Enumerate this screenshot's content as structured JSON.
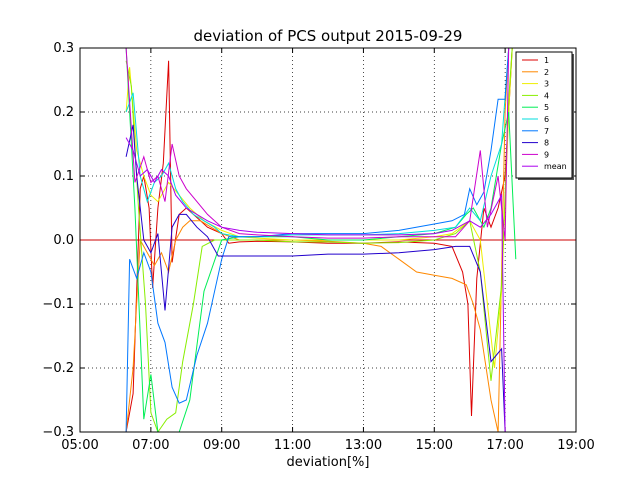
{
  "chart_data": {
    "type": "line",
    "title": "deviation of PCS output 2015-09-29",
    "xlabel": "deviation[%]",
    "ylabel": "",
    "x_ticks": [
      "05:00",
      "07:00",
      "09:00",
      "11:00",
      "13:00",
      "15:00",
      "17:00",
      "19:00"
    ],
    "y_ticks": [
      "0.3",
      "0.2",
      "0.1",
      "0.0",
      "−0.1",
      "−0.2",
      "−0.3"
    ],
    "xlim": [
      5,
      19
    ],
    "ylim": [
      -0.3,
      0.3
    ],
    "grid": true,
    "legend_position": "top-right",
    "reference_line": {
      "y": 0,
      "color": "#cc0000"
    },
    "series": [
      {
        "name": "1",
        "color": "#dd0000",
        "points": [
          [
            6.3,
            -0.3
          ],
          [
            6.5,
            -0.24
          ],
          [
            6.7,
            0.08
          ],
          [
            6.8,
            0.1
          ],
          [
            6.95,
            0.05
          ],
          [
            7.05,
            -0.075
          ],
          [
            7.2,
            0.05
          ],
          [
            7.35,
            0.12
          ],
          [
            7.5,
            0.28
          ],
          [
            7.6,
            -0.035
          ],
          [
            7.8,
            0.04
          ],
          [
            8.0,
            0.05
          ],
          [
            8.2,
            0.04
          ],
          [
            8.4,
            0.03
          ],
          [
            8.6,
            0.02
          ],
          [
            8.8,
            0.015
          ],
          [
            9.0,
            0.01
          ],
          [
            9.2,
            -0.005
          ],
          [
            9.5,
            -0.003
          ],
          [
            10,
            -0.002
          ],
          [
            11,
            -0.003
          ],
          [
            12,
            -0.005
          ],
          [
            13,
            -0.005
          ],
          [
            14,
            -0.003
          ],
          [
            15,
            -0.005
          ],
          [
            15.5,
            -0.01
          ],
          [
            15.8,
            -0.05
          ],
          [
            15.95,
            -0.1
          ],
          [
            16.05,
            -0.275
          ],
          [
            16.2,
            -0.06
          ],
          [
            16.4,
            0.05
          ],
          [
            16.6,
            0.02
          ],
          [
            16.8,
            0.05
          ],
          [
            17.0,
            0.1
          ],
          [
            17.1,
            0.2
          ],
          [
            17.2,
            0.3
          ]
        ]
      },
      {
        "name": "2",
        "color": "#ff8800",
        "points": [
          [
            6.3,
            -0.3
          ],
          [
            6.5,
            -0.2
          ],
          [
            6.7,
            0.0
          ],
          [
            6.9,
            -0.02
          ],
          [
            7.1,
            -0.04
          ],
          [
            7.3,
            -0.02
          ],
          [
            7.5,
            -0.05
          ],
          [
            7.7,
            0.0
          ],
          [
            7.9,
            0.02
          ],
          [
            8.1,
            0.03
          ],
          [
            8.4,
            0.03
          ],
          [
            8.7,
            0.02
          ],
          [
            9.0,
            0.01
          ],
          [
            9.5,
            0.0
          ],
          [
            10,
            0.0
          ],
          [
            11,
            0.0
          ],
          [
            12,
            -0.002
          ],
          [
            13,
            -0.005
          ],
          [
            13.5,
            -0.01
          ],
          [
            14,
            -0.03
          ],
          [
            14.5,
            -0.05
          ],
          [
            15,
            -0.055
          ],
          [
            15.5,
            -0.06
          ],
          [
            15.9,
            -0.07
          ],
          [
            16.1,
            -0.1
          ],
          [
            16.3,
            -0.14
          ],
          [
            16.6,
            -0.25
          ],
          [
            16.8,
            -0.3
          ],
          [
            17.0,
            0.2
          ],
          [
            17.1,
            0.3
          ]
        ]
      },
      {
        "name": "3",
        "color": "#eeee00",
        "points": [
          [
            6.3,
            0.2
          ],
          [
            6.4,
            0.27
          ],
          [
            6.6,
            0.14
          ],
          [
            6.8,
            0.1
          ],
          [
            7.0,
            0.07
          ],
          [
            7.2,
            0.06
          ],
          [
            7.5,
            0.09
          ],
          [
            7.8,
            0.07
          ],
          [
            8.1,
            0.05
          ],
          [
            8.5,
            0.03
          ],
          [
            9.0,
            0.015
          ],
          [
            9.5,
            0.005
          ],
          [
            10,
            0.003
          ],
          [
            11,
            0.0
          ],
          [
            12,
            0.0
          ],
          [
            13,
            0.0
          ],
          [
            14,
            0.0
          ],
          [
            15,
            0.005
          ],
          [
            15.5,
            0.01
          ],
          [
            16.0,
            0.03
          ],
          [
            16.3,
            0.0
          ],
          [
            16.5,
            -0.1
          ],
          [
            16.7,
            -0.2
          ],
          [
            16.9,
            -0.08
          ],
          [
            17.1,
            0.2
          ],
          [
            17.2,
            0.3
          ]
        ]
      },
      {
        "name": "4",
        "color": "#88ee00",
        "points": [
          [
            6.3,
            0.28
          ],
          [
            6.45,
            0.24
          ],
          [
            6.65,
            0.05
          ],
          [
            6.85,
            -0.1
          ],
          [
            7.0,
            -0.27
          ],
          [
            7.2,
            -0.3
          ],
          [
            7.45,
            -0.28
          ],
          [
            7.7,
            -0.27
          ],
          [
            7.9,
            -0.19
          ],
          [
            8.2,
            -0.1
          ],
          [
            8.45,
            -0.01
          ],
          [
            8.8,
            0.0
          ],
          [
            9.2,
            0.0
          ],
          [
            10,
            0.0
          ],
          [
            11,
            -0.003
          ],
          [
            12,
            -0.003
          ],
          [
            13,
            -0.005
          ],
          [
            14,
            -0.004
          ],
          [
            15,
            0.0
          ],
          [
            15.6,
            0.01
          ],
          [
            16.0,
            0.03
          ],
          [
            16.3,
            -0.05
          ],
          [
            16.6,
            -0.22
          ],
          [
            16.9,
            -0.07
          ],
          [
            17.1,
            0.22
          ],
          [
            17.2,
            0.3
          ]
        ]
      },
      {
        "name": "5",
        "color": "#00ee55",
        "points": [
          [
            6.3,
            0.3
          ],
          [
            6.55,
            0.05
          ],
          [
            6.8,
            -0.28
          ],
          [
            7.0,
            -0.21
          ],
          [
            7.2,
            -0.3
          ],
          [
            7.4,
            -0.3
          ],
          [
            7.6,
            -0.3
          ],
          [
            7.8,
            -0.3
          ],
          [
            8.1,
            -0.25
          ],
          [
            8.5,
            -0.08
          ],
          [
            9.0,
            0.0
          ],
          [
            9.5,
            0.005
          ],
          [
            10,
            0.005
          ],
          [
            11,
            0.005
          ],
          [
            12,
            0.0
          ],
          [
            13,
            0.0
          ],
          [
            14,
            0.005
          ],
          [
            15,
            0.01
          ],
          [
            15.6,
            0.02
          ],
          [
            15.9,
            0.04
          ],
          [
            16.1,
            0.05
          ],
          [
            16.4,
            0.02
          ],
          [
            16.6,
            0.05
          ],
          [
            16.9,
            0.15
          ],
          [
            17.1,
            0.2
          ],
          [
            17.3,
            -0.03
          ]
        ]
      },
      {
        "name": "6",
        "color": "#00dddd",
        "points": [
          [
            6.3,
            0.2
          ],
          [
            6.5,
            0.23
          ],
          [
            6.7,
            0.1
          ],
          [
            6.9,
            0.06
          ],
          [
            7.1,
            0.09
          ],
          [
            7.3,
            0.1
          ],
          [
            7.5,
            0.12
          ],
          [
            7.7,
            0.08
          ],
          [
            7.9,
            0.06
          ],
          [
            8.2,
            0.04
          ],
          [
            8.5,
            0.03
          ],
          [
            8.8,
            0.02
          ],
          [
            9.0,
            0.01
          ],
          [
            9.5,
            0.005
          ],
          [
            10,
            0.005
          ],
          [
            11,
            0.008
          ],
          [
            12,
            0.008
          ],
          [
            13,
            0.008
          ],
          [
            14,
            0.01
          ],
          [
            15,
            0.015
          ],
          [
            15.6,
            0.02
          ],
          [
            16.0,
            0.05
          ],
          [
            16.3,
            0.03
          ],
          [
            16.6,
            0.1
          ],
          [
            16.9,
            0.15
          ],
          [
            17.1,
            0.3
          ]
        ]
      },
      {
        "name": "7",
        "color": "#0077ff",
        "points": [
          [
            6.3,
            -0.3
          ],
          [
            6.4,
            -0.03
          ],
          [
            6.6,
            -0.06
          ],
          [
            6.8,
            -0.02
          ],
          [
            7.0,
            -0.05
          ],
          [
            7.2,
            -0.13
          ],
          [
            7.4,
            -0.16
          ],
          [
            7.6,
            -0.23
          ],
          [
            7.8,
            -0.255
          ],
          [
            8.0,
            -0.25
          ],
          [
            8.3,
            -0.18
          ],
          [
            8.6,
            -0.13
          ],
          [
            8.8,
            -0.08
          ],
          [
            9.0,
            -0.03
          ],
          [
            9.2,
            0.005
          ],
          [
            10,
            0.005
          ],
          [
            11,
            0.01
          ],
          [
            12,
            0.01
          ],
          [
            13,
            0.01
          ],
          [
            14,
            0.015
          ],
          [
            15,
            0.025
          ],
          [
            15.5,
            0.03
          ],
          [
            15.85,
            0.04
          ],
          [
            16.0,
            0.08
          ],
          [
            16.2,
            0.055
          ],
          [
            16.4,
            0.075
          ],
          [
            16.6,
            0.14
          ],
          [
            16.8,
            0.22
          ],
          [
            17.0,
            0.22
          ],
          [
            17.1,
            0.3
          ]
        ]
      },
      {
        "name": "8",
        "color": "#2200cc",
        "points": [
          [
            6.3,
            0.13
          ],
          [
            6.5,
            0.18
          ],
          [
            6.6,
            0.1
          ],
          [
            6.8,
            -0.0
          ],
          [
            7.0,
            -0.02
          ],
          [
            7.2,
            0.01
          ],
          [
            7.4,
            -0.11
          ],
          [
            7.6,
            0.02
          ],
          [
            7.8,
            0.04
          ],
          [
            8.0,
            0.04
          ],
          [
            8.3,
            0.02
          ],
          [
            8.6,
            0.005
          ],
          [
            8.9,
            -0.025
          ],
          [
            9.2,
            -0.025
          ],
          [
            10,
            -0.025
          ],
          [
            11,
            -0.025
          ],
          [
            12,
            -0.022
          ],
          [
            13,
            -0.022
          ],
          [
            14,
            -0.02
          ],
          [
            15,
            -0.015
          ],
          [
            15.6,
            -0.01
          ],
          [
            16.0,
            -0.01
          ],
          [
            16.3,
            -0.05
          ],
          [
            16.6,
            -0.19
          ],
          [
            16.9,
            -0.17
          ],
          [
            17.0,
            -0.3
          ]
        ]
      },
      {
        "name": "9",
        "color": "#cc00cc",
        "points": [
          [
            6.3,
            0.3
          ],
          [
            6.55,
            0.09
          ],
          [
            6.8,
            0.13
          ],
          [
            7.0,
            0.09
          ],
          [
            7.2,
            0.1
          ],
          [
            7.4,
            0.06
          ],
          [
            7.6,
            0.15
          ],
          [
            7.8,
            0.1
          ],
          [
            8.0,
            0.08
          ],
          [
            8.3,
            0.06
          ],
          [
            8.6,
            0.04
          ],
          [
            9.0,
            0.02
          ],
          [
            9.5,
            0.01
          ],
          [
            10,
            0.008
          ],
          [
            11,
            0.005
          ],
          [
            12,
            0.003
          ],
          [
            13,
            0.003
          ],
          [
            14,
            0.005
          ],
          [
            15,
            0.005
          ],
          [
            15.6,
            0.005
          ],
          [
            16.0,
            0.03
          ],
          [
            16.3,
            0.14
          ],
          [
            16.5,
            0.02
          ],
          [
            16.8,
            0.1
          ],
          [
            17.0,
            0.0
          ],
          [
            17.1,
            0.3
          ]
        ]
      },
      {
        "name": "mean",
        "color": "#aa00ee",
        "points": [
          [
            6.3,
            0.16
          ],
          [
            6.5,
            0.14
          ],
          [
            6.7,
            0.1
          ],
          [
            6.9,
            0.11
          ],
          [
            7.1,
            0.09
          ],
          [
            7.3,
            0.11
          ],
          [
            7.5,
            0.1
          ],
          [
            7.7,
            0.07
          ],
          [
            8.0,
            0.05
          ],
          [
            8.3,
            0.04
          ],
          [
            8.6,
            0.03
          ],
          [
            9.0,
            0.02
          ],
          [
            9.5,
            0.015
          ],
          [
            10,
            0.012
          ],
          [
            11,
            0.01
          ],
          [
            12,
            0.008
          ],
          [
            13,
            0.008
          ],
          [
            14,
            0.008
          ],
          [
            15,
            0.01
          ],
          [
            15.5,
            0.015
          ],
          [
            16.0,
            0.03
          ],
          [
            16.3,
            0.02
          ],
          [
            16.6,
            0.04
          ],
          [
            16.9,
            0.07
          ],
          [
            17.0,
            -0.3
          ]
        ]
      }
    ]
  }
}
